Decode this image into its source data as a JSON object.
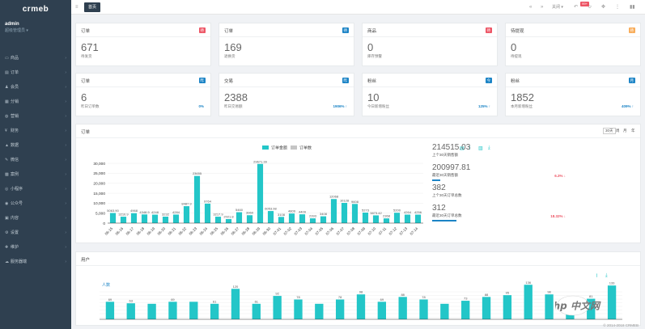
{
  "sidebar": {
    "logo": "crmeb",
    "user_name": "admin",
    "user_role": "超级管理员 ▾",
    "items": [
      {
        "label": "商品",
        "icon": "product-icon",
        "glyph": "▭"
      },
      {
        "label": "订单",
        "icon": "order-icon",
        "glyph": "▤"
      },
      {
        "label": "会员",
        "icon": "member-icon",
        "glyph": "♟"
      },
      {
        "label": "分销",
        "icon": "distribution-icon",
        "glyph": "▦"
      },
      {
        "label": "营销",
        "icon": "marketing-icon",
        "glyph": "◍"
      },
      {
        "label": "财务",
        "icon": "finance-icon",
        "glyph": "¥"
      },
      {
        "label": "数据",
        "icon": "data-icon",
        "glyph": "▲"
      },
      {
        "label": "微信",
        "icon": "wechat-icon",
        "glyph": "✎"
      },
      {
        "label": "案例",
        "icon": "case-icon",
        "glyph": "▩"
      },
      {
        "label": "小程序",
        "icon": "miniprogram-icon",
        "glyph": "◎"
      },
      {
        "label": "公众号",
        "icon": "official-account-icon",
        "glyph": "◉"
      },
      {
        "label": "内容",
        "icon": "content-icon",
        "glyph": "▣"
      },
      {
        "label": "设置",
        "icon": "settings-icon",
        "glyph": "⚙"
      },
      {
        "label": "维护",
        "icon": "maintenance-icon",
        "glyph": "✚"
      },
      {
        "label": "服务器端",
        "icon": "server-icon",
        "glyph": "☁"
      }
    ]
  },
  "topbar": {
    "tab_label": "首页",
    "refresh_label": "关闭 ▾",
    "badge": "99+"
  },
  "cards_row1": [
    {
      "title": "订单",
      "badge": "待",
      "badge_color": "#ed5565",
      "value": "671",
      "sub": "待发货"
    },
    {
      "title": "订单",
      "badge": "待",
      "badge_color": "#1c84c6",
      "value": "169",
      "sub": "退换货"
    },
    {
      "title": "商品",
      "badge": "待",
      "badge_color": "#ed5565",
      "value": "0",
      "sub": "库存预警"
    },
    {
      "title": "待提现",
      "badge": "待",
      "badge_color": "#f8ac59",
      "value": "0",
      "sub": "待提现"
    }
  ],
  "cards_row2": [
    {
      "title": "订单",
      "badge": "昨",
      "badge_color": "#1c84c6",
      "value": "6",
      "sub": "昨日订单数",
      "pct": "0%"
    },
    {
      "title": "交易",
      "badge": "昨",
      "badge_color": "#1c84c6",
      "value": "2388",
      "sub": "昨日交易额",
      "pct": "1906% ↑"
    },
    {
      "title": "粉丝",
      "badge": "今",
      "badge_color": "#1c84c6",
      "value": "10",
      "sub": "今日新增粉丝",
      "pct": "125% ↑"
    },
    {
      "title": "粉丝",
      "badge": "月",
      "badge_color": "#1c84c6",
      "value": "1852",
      "sub": "本月新增粉丝",
      "pct": "409% ↑"
    }
  ],
  "order_panel": {
    "title": "订单",
    "segments": [
      "30天",
      "周",
      "月",
      "年"
    ],
    "stats": [
      {
        "value": "214515.03",
        "label": "上个30天销售额",
        "pct": "",
        "pct_color": "#ed5565",
        "progress": 0
      },
      {
        "value": "200997.81",
        "label": "最近30天销售额",
        "pct": "6.3% ↓",
        "pct_color": "#ed5565",
        "progress": 0.06
      },
      {
        "value": "382",
        "label": "上个30天订单总数",
        "pct": "",
        "pct_color": "#ed5565",
        "progress": 0
      },
      {
        "value": "312",
        "label": "最近30天订单总数",
        "pct": "18.32% ↓",
        "pct_color": "#ed5565",
        "progress": 0.18
      }
    ]
  },
  "chart_data": [
    {
      "type": "bar",
      "legend": [
        "订单金额",
        "订单数"
      ],
      "legend_position": "top-center",
      "colors": {
        "amount": "#23c6c8",
        "count": "#c5c5c5"
      },
      "yticks": [
        "30,000",
        "25,000",
        "20,000",
        "15,000",
        "10,000",
        "5,000",
        "0"
      ],
      "ylim": [
        0,
        30000
      ],
      "categories": [
        "06-15",
        "06-16",
        "06-17",
        "06-18",
        "06-19",
        "06-20",
        "06-21",
        "06-22",
        "06-23",
        "06-24",
        "06-25",
        "06-26",
        "06-27",
        "06-28",
        "06-29",
        "06-30",
        "07-01",
        "07-02",
        "07-03",
        "07-04",
        "07-05",
        "07-06",
        "07-07",
        "07-08",
        "07-09",
        "07-10",
        "07-11",
        "07-12",
        "07-13",
        "07-14"
      ],
      "values": [
        5063.9,
        3210.9,
        4968,
        4348.9,
        4248,
        3232,
        4284,
        8487.9,
        23655,
        9764,
        3217.9,
        2021.8,
        5460,
        3960,
        29671.39,
        6053.98,
        3108,
        4809,
        4409,
        2393,
        3408,
        12068,
        10128,
        9608,
        5273,
        3873.42,
        2368,
        5200,
        4264,
        4256
      ],
      "labels": [
        "5063.90",
        "3210.9",
        "4968",
        "4348.9",
        "4248",
        "3232",
        "4284",
        "8487.9",
        "23655",
        "9764",
        "3217.9",
        "2021.8",
        "5460",
        "3960",
        "29671.39",
        "6053.98",
        "3108",
        "4809",
        "4409",
        "2393",
        "3408",
        "12068",
        "10128",
        "9608",
        "5273",
        "3873.42",
        "2368",
        "5200",
        "4264",
        "4256"
      ]
    },
    {
      "type": "bar",
      "title": "用户",
      "ylabel": "人数",
      "colors": {
        "users": "#23c6c8"
      },
      "ylim": [
        0,
        140
      ],
      "values": [
        69,
        63,
        61,
        69,
        69,
        61,
        120,
        61,
        92,
        78,
        61,
        78,
        98,
        69,
        88,
        78,
        61,
        73,
        88,
        95,
        136,
        98,
        61,
        81,
        133
      ],
      "labels": [
        "69",
        "63",
        "",
        "69",
        "",
        "61",
        "120",
        "61",
        "92",
        "78",
        "",
        "78",
        "98",
        "69",
        "88",
        "78",
        "",
        "73",
        "88",
        "95",
        "136",
        "98",
        "",
        "81",
        "133"
      ]
    }
  ],
  "users_panel": {
    "title": "用户"
  },
  "footer": "© 2014-2018 CRMEB",
  "watermark": "php 中文网"
}
